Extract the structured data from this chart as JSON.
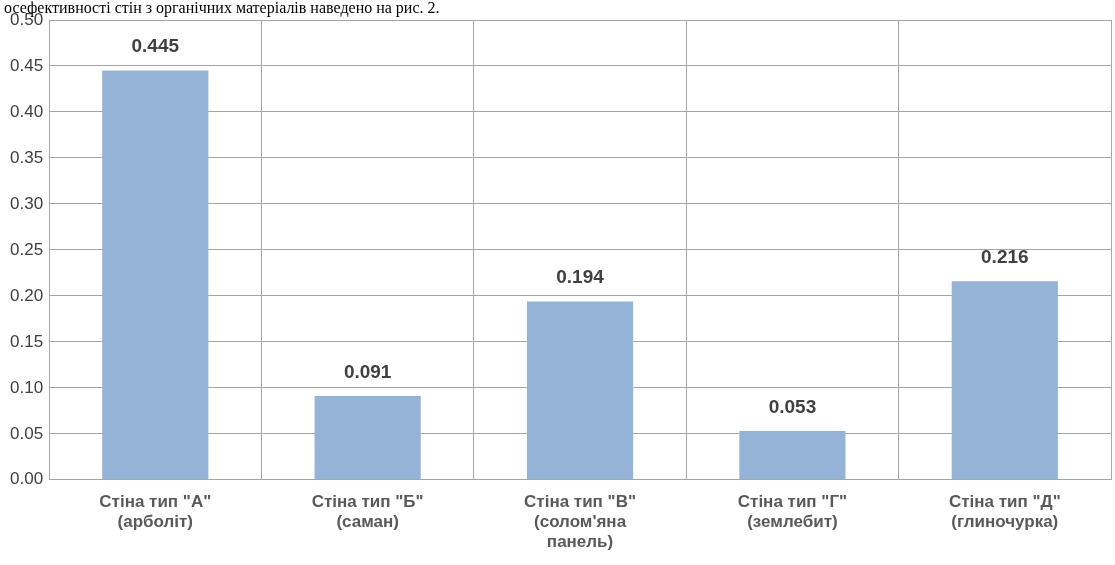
{
  "chart_data": {
    "type": "bar",
    "annotations": [
      "осефективності стін з органічних матеріалів наведено на рис. 2."
    ],
    "categories": [
      "Стіна тип \"А\" (арболіт)",
      "Стіна тип \"Б\" (саман)",
      "Стіна тип \"В\" (солом'яна панель)",
      "Стіна тип \"Г\" (землебит)",
      "Стіна тип \"Д\" (глиночурка)"
    ],
    "values": [
      0.445,
      0.091,
      0.194,
      0.053,
      0.216
    ],
    "color": "#95b3d7",
    "ylim": [
      0,
      0.5
    ],
    "yticks": [
      {
        "value": 0,
        "label": "0.00"
      },
      {
        "value": 0.05,
        "label": "0.05"
      },
      {
        "value": 0.1,
        "label": "0.10"
      },
      {
        "value": 0.15,
        "label": "0.15"
      },
      {
        "value": 0.2,
        "label": "0.20"
      },
      {
        "value": 0.25,
        "label": "0.25"
      },
      {
        "value": 0.3,
        "label": "0.30"
      },
      {
        "value": 0.35,
        "label": "0.35"
      },
      {
        "value": 0.4,
        "label": "0.40"
      },
      {
        "value": 0.45,
        "label": "0.45"
      },
      {
        "value": 0.5,
        "label": "0.50"
      }
    ],
    "grid": true,
    "data_labels": true
  }
}
